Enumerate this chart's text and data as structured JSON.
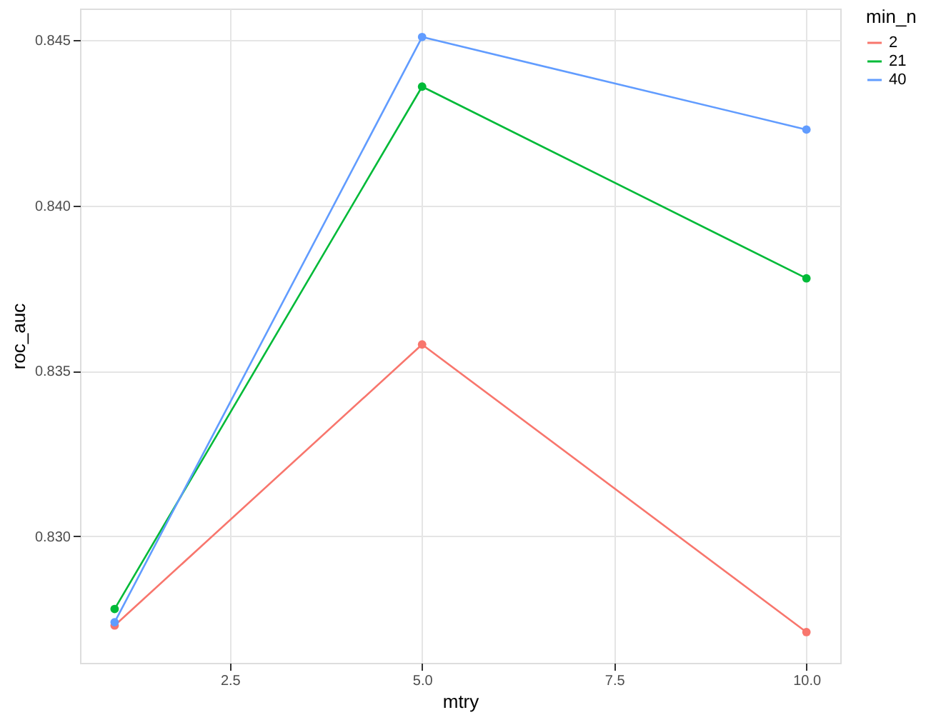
{
  "chart_data": {
    "type": "line",
    "xlabel": "mtry",
    "ylabel": "roc_auc",
    "legend_title": "min_n",
    "x": [
      1,
      5,
      10
    ],
    "series": [
      {
        "name": "2",
        "color": "#f8766d",
        "values": [
          0.8273,
          0.8358,
          0.8271
        ]
      },
      {
        "name": "21",
        "color": "#00ba38",
        "values": [
          0.8278,
          0.8436,
          0.8378
        ]
      },
      {
        "name": "40",
        "color": "#619cff",
        "values": [
          0.8274,
          0.8451,
          0.8423
        ]
      }
    ],
    "xlim": [
      0.55,
      10.44
    ],
    "ylim": [
      0.82617,
      0.84596
    ],
    "xticks": [
      {
        "value": 2.5,
        "label": "2.5"
      },
      {
        "value": 5,
        "label": "5.0"
      },
      {
        "value": 7.5,
        "label": "7.5"
      },
      {
        "value": 10,
        "label": "10.0"
      }
    ],
    "yticks": [
      {
        "value": 0.83,
        "label": "0.830"
      },
      {
        "value": 0.835,
        "label": "0.835"
      },
      {
        "value": 0.84,
        "label": "0.840"
      },
      {
        "value": 0.845,
        "label": "0.845"
      }
    ],
    "grid": true,
    "legend": "right",
    "marker": "circle",
    "line_style": "solid"
  }
}
